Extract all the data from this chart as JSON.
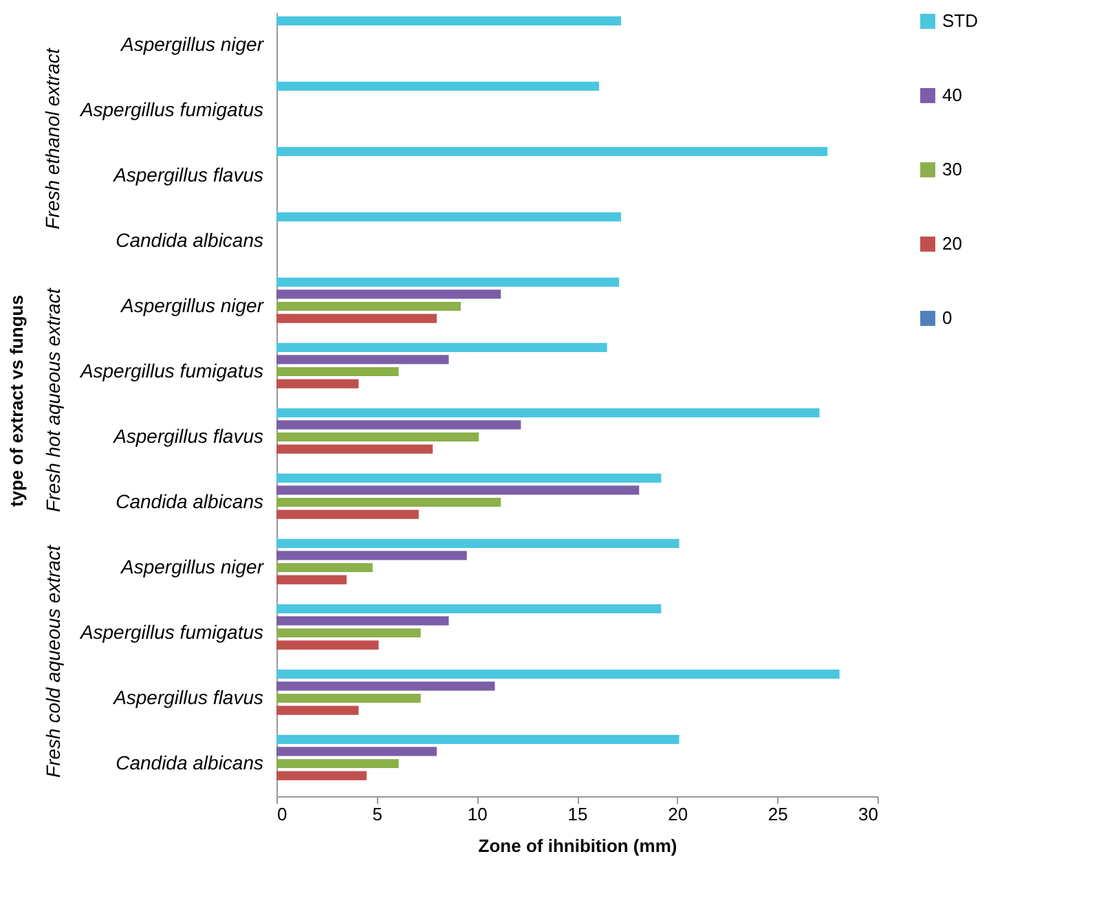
{
  "chart_data": {
    "type": "bar",
    "orientation": "horizontal",
    "xlabel": "Zone of ihnibition (mm)",
    "annotations": [
      "type of extract vs fungus",
      "Fresh ethanol extract",
      "Fresh hot aqueous extract",
      "Fresh cold aqueous extract"
    ],
    "categories": [
      "Aspergillus niger",
      "Aspergillus fumigatus",
      "Aspergillus flavus",
      "Candida albicans",
      "Aspergillus niger",
      "Aspergillus fumigatus",
      "Aspergillus flavus",
      "Candida albicans",
      "Aspergillus niger",
      "Aspergillus fumigatus",
      "Aspergillus flavus",
      "Candida albicans"
    ],
    "xlim": [
      0,
      30
    ],
    "xticks": [
      0,
      5,
      10,
      15,
      20,
      25,
      30
    ],
    "legend": "right",
    "series": [
      {
        "name": "STD",
        "color": "#4bc6df",
        "values": [
          17.2,
          16.1,
          27.5,
          17.2,
          17.1,
          16.5,
          27.1,
          19.2,
          20.1,
          19.2,
          28.1,
          20.1
        ]
      },
      {
        "name": "40",
        "color": "#7b5ea7",
        "values": [
          0,
          0,
          0,
          0,
          11.2,
          8.6,
          12.2,
          18.1,
          9.5,
          8.6,
          10.9,
          8.0
        ]
      },
      {
        "name": "30",
        "color": "#8cb04a",
        "values": [
          0,
          0,
          0,
          0,
          9.2,
          6.1,
          10.1,
          11.2,
          4.8,
          7.2,
          7.2,
          6.1
        ]
      },
      {
        "name": "20",
        "color": "#c0504d",
        "values": [
          0,
          0,
          0,
          0,
          8.0,
          4.1,
          7.8,
          7.1,
          3.5,
          5.1,
          4.1,
          4.5
        ]
      },
      {
        "name": "0",
        "color": "#4f81bd",
        "values": [
          0,
          0,
          0,
          0,
          0,
          0,
          0,
          0,
          0,
          0,
          0,
          0
        ]
      }
    ]
  }
}
